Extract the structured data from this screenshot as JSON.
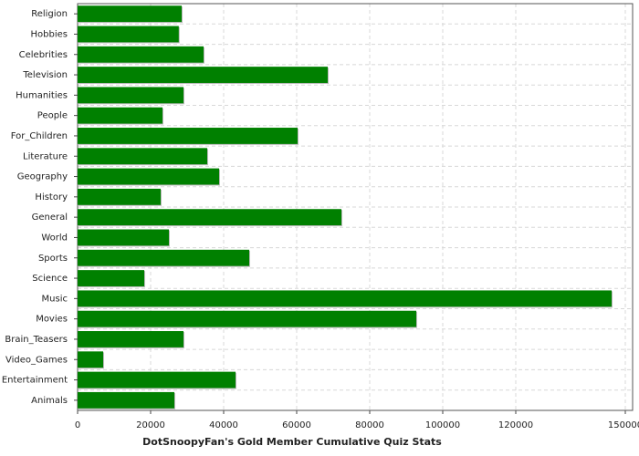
{
  "chart_data": {
    "type": "hbar",
    "title": "DotSnoopyFan's Gold Member Cumulative Quiz Stats",
    "categories": [
      "Religion",
      "Hobbies",
      "Celebrities",
      "Television",
      "Humanities",
      "People",
      "For_Children",
      "Literature",
      "Geography",
      "History",
      "General",
      "World",
      "Sports",
      "Science",
      "Music",
      "Movies",
      "Brain_Teasers",
      "Video_Games",
      "Entertainment",
      "Animals"
    ],
    "values": [
      28500,
      27700,
      34500,
      68500,
      29000,
      23250,
      60250,
      35500,
      38750,
      22750,
      72250,
      25000,
      47000,
      18250,
      146250,
      92750,
      29000,
      7000,
      43250,
      26500
    ],
    "color": "#008000",
    "xlim": [
      0,
      152000
    ],
    "xticks": [
      0,
      20000,
      40000,
      60000,
      80000,
      100000,
      120000,
      150000
    ],
    "grid": true
  }
}
